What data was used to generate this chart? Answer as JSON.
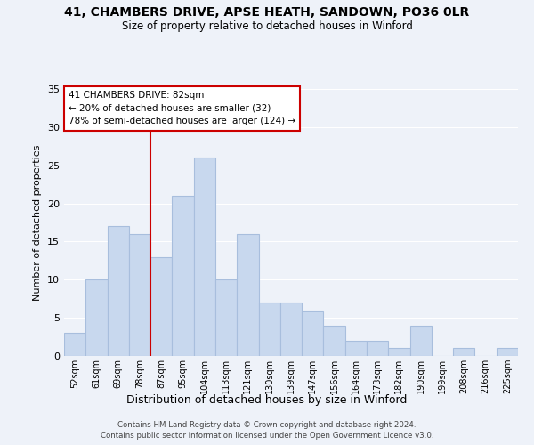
{
  "title": "41, CHAMBERS DRIVE, APSE HEATH, SANDOWN, PO36 0LR",
  "subtitle": "Size of property relative to detached houses in Winford",
  "xlabel": "Distribution of detached houses by size in Winford",
  "ylabel": "Number of detached properties",
  "bar_labels": [
    "52sqm",
    "61sqm",
    "69sqm",
    "78sqm",
    "87sqm",
    "95sqm",
    "104sqm",
    "113sqm",
    "121sqm",
    "130sqm",
    "139sqm",
    "147sqm",
    "156sqm",
    "164sqm",
    "173sqm",
    "182sqm",
    "190sqm",
    "199sqm",
    "208sqm",
    "216sqm",
    "225sqm"
  ],
  "bar_values": [
    3,
    10,
    17,
    16,
    13,
    21,
    26,
    10,
    16,
    7,
    7,
    6,
    4,
    2,
    2,
    1,
    4,
    0,
    1,
    0,
    1
  ],
  "bar_color": "#c8d8ee",
  "bar_edge_color": "#a8bedd",
  "vline_color": "#cc0000",
  "ylim": [
    0,
    35
  ],
  "yticks": [
    0,
    5,
    10,
    15,
    20,
    25,
    30,
    35
  ],
  "annotation_title": "41 CHAMBERS DRIVE: 82sqm",
  "annotation_line1": "← 20% of detached houses are smaller (32)",
  "annotation_line2": "78% of semi-detached houses are larger (124) →",
  "annotation_box_color": "#ffffff",
  "annotation_box_edge": "#cc0000",
  "footer_line1": "Contains HM Land Registry data © Crown copyright and database right 2024.",
  "footer_line2": "Contains public sector information licensed under the Open Government Licence v3.0.",
  "bg_color": "#eef2f9",
  "grid_color": "#ffffff"
}
